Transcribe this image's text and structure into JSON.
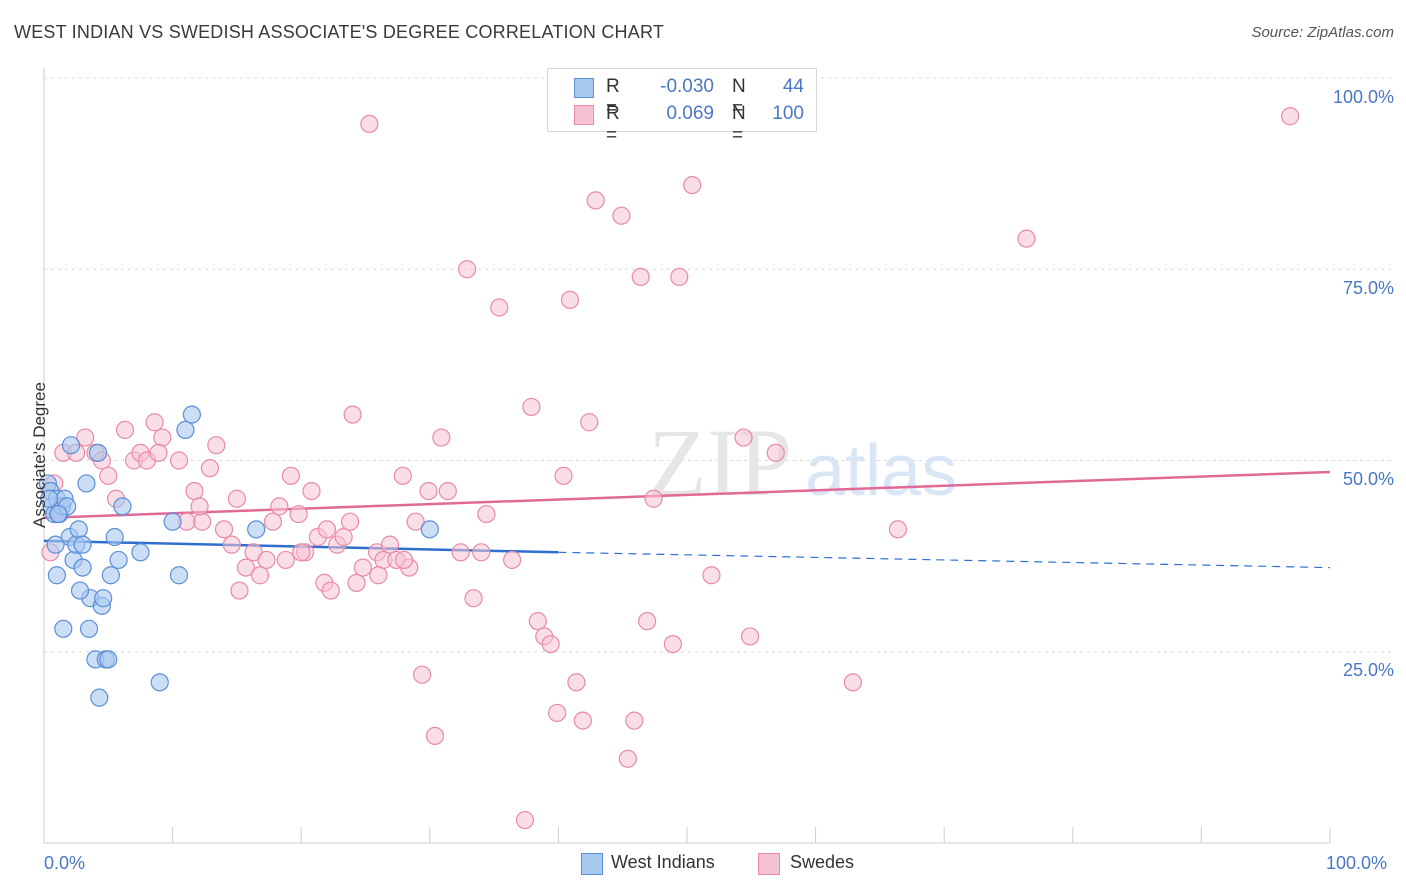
{
  "header": {
    "title": "WEST INDIAN VS SWEDISH ASSOCIATE'S DEGREE CORRELATION CHART",
    "source": "Source: ZipAtlas.com"
  },
  "colors": {
    "blue_fill": "#a9c8f0",
    "blue_stroke": "#5b8fd6",
    "blue_line": "#2e6fcf",
    "pink_fill": "#f6c3d3",
    "pink_stroke": "#e88aa8",
    "pink_line": "#e06a97",
    "axis_label": "#4a78c4",
    "grid": "#dcdcdc"
  },
  "legend": {
    "rows": [
      {
        "r_label": "R =",
        "r_value": "-0.030",
        "n_label": "N =",
        "n_value": "44"
      },
      {
        "r_label": "R =",
        "r_value": "0.069",
        "n_label": "N =",
        "n_value": "100"
      }
    ]
  },
  "bottom_legend": {
    "west_indians": "West Indians",
    "swedes": "Swedes"
  },
  "chart_data": {
    "type": "scatter",
    "title": "WEST INDIAN VS SWEDISH ASSOCIATE'S DEGREE CORRELATION CHART",
    "xlabel": "",
    "ylabel": "Associate's Degree",
    "xlim": [
      0,
      100
    ],
    "ylim": [
      0,
      100
    ],
    "x_tick_labels": [
      "0.0%",
      "100.0%"
    ],
    "y_tick_labels": [
      "100.0%",
      "75.0%",
      "50.0%",
      "25.0%"
    ],
    "y_ticks": [
      100,
      75,
      50,
      25
    ],
    "watermark": "ZIPatlas",
    "series": [
      {
        "name": "West Indians",
        "color": "blue",
        "r": -0.03,
        "n": 44,
        "trend": {
          "x0": 0,
          "y0": 39.5,
          "x1": 40,
          "y1": 38.0,
          "dash_to_x": 100,
          "dash_to_y": 36.0
        },
        "points": [
          [
            0.3,
            47
          ],
          [
            0.5,
            46
          ],
          [
            0.6,
            44
          ],
          [
            0.8,
            43
          ],
          [
            1.0,
            45
          ],
          [
            1.2,
            43
          ],
          [
            1.4,
            44
          ],
          [
            1.6,
            45
          ],
          [
            1.8,
            44
          ],
          [
            2.0,
            40
          ],
          [
            2.3,
            37
          ],
          [
            2.5,
            39
          ],
          [
            2.7,
            41
          ],
          [
            3.0,
            39
          ],
          [
            3.0,
            36
          ],
          [
            3.3,
            47
          ],
          [
            3.6,
            32
          ],
          [
            4.0,
            24
          ],
          [
            4.3,
            19
          ],
          [
            4.5,
            31
          ],
          [
            4.6,
            32
          ],
          [
            4.8,
            24
          ],
          [
            5.0,
            24
          ],
          [
            5.2,
            35
          ],
          [
            5.5,
            40
          ],
          [
            5.8,
            37
          ],
          [
            7.5,
            38
          ],
          [
            9.0,
            21
          ],
          [
            10.0,
            42
          ],
          [
            10.5,
            35
          ],
          [
            11.0,
            54
          ],
          [
            11.5,
            56
          ],
          [
            16.5,
            41
          ],
          [
            30.0,
            41
          ],
          [
            1.0,
            35
          ],
          [
            1.5,
            28
          ],
          [
            3.5,
            28
          ],
          [
            4.2,
            51
          ],
          [
            2.1,
            52
          ],
          [
            1.1,
            43
          ],
          [
            0.4,
            45
          ],
          [
            2.8,
            33
          ],
          [
            6.1,
            44
          ],
          [
            0.9,
            39
          ]
        ]
      },
      {
        "name": "Swedes",
        "color": "pink",
        "r": 0.069,
        "n": 100,
        "trend": {
          "x0": 0,
          "y0": 42.5,
          "x1": 100,
          "y1": 48.5
        },
        "points": [
          [
            0.5,
            38
          ],
          [
            0.8,
            47
          ],
          [
            1.5,
            51
          ],
          [
            2.5,
            51
          ],
          [
            3.2,
            53
          ],
          [
            4.0,
            51
          ],
          [
            4.5,
            50
          ],
          [
            5.0,
            48
          ],
          [
            5.6,
            45
          ],
          [
            6.3,
            54
          ],
          [
            7.0,
            50
          ],
          [
            7.5,
            51
          ],
          [
            8.0,
            50
          ],
          [
            8.6,
            55
          ],
          [
            9.2,
            53
          ],
          [
            10.5,
            50
          ],
          [
            11.1,
            42
          ],
          [
            11.7,
            46
          ],
          [
            12.3,
            42
          ],
          [
            12.9,
            49
          ],
          [
            13.4,
            52
          ],
          [
            14.0,
            41
          ],
          [
            14.6,
            39
          ],
          [
            15.2,
            33
          ],
          [
            15.7,
            36
          ],
          [
            16.3,
            38
          ],
          [
            16.8,
            35
          ],
          [
            17.3,
            37
          ],
          [
            17.8,
            42
          ],
          [
            18.3,
            44
          ],
          [
            18.8,
            37
          ],
          [
            19.2,
            48
          ],
          [
            19.8,
            43
          ],
          [
            20.3,
            38
          ],
          [
            20.8,
            46
          ],
          [
            21.3,
            40
          ],
          [
            21.8,
            34
          ],
          [
            22.3,
            33
          ],
          [
            22.8,
            39
          ],
          [
            23.3,
            40
          ],
          [
            23.8,
            42
          ],
          [
            24.3,
            34
          ],
          [
            24.8,
            36
          ],
          [
            25.3,
            94
          ],
          [
            25.9,
            38
          ],
          [
            26.4,
            37
          ],
          [
            26.9,
            39
          ],
          [
            27.4,
            37
          ],
          [
            27.9,
            48
          ],
          [
            28.4,
            36
          ],
          [
            28.9,
            42
          ],
          [
            29.4,
            22
          ],
          [
            29.9,
            46
          ],
          [
            30.4,
            14
          ],
          [
            30.9,
            53
          ],
          [
            31.4,
            46
          ],
          [
            32.4,
            38
          ],
          [
            32.9,
            75
          ],
          [
            33.4,
            32
          ],
          [
            34.4,
            43
          ],
          [
            35.4,
            70
          ],
          [
            36.4,
            37
          ],
          [
            37.4,
            3
          ],
          [
            37.9,
            57
          ],
          [
            38.4,
            29
          ],
          [
            38.9,
            27
          ],
          [
            39.4,
            26
          ],
          [
            39.9,
            17
          ],
          [
            40.4,
            48
          ],
          [
            40.9,
            71
          ],
          [
            41.4,
            21
          ],
          [
            41.9,
            16
          ],
          [
            42.4,
            55
          ],
          [
            42.9,
            84
          ],
          [
            44.9,
            82
          ],
          [
            45.4,
            11
          ],
          [
            45.9,
            16
          ],
          [
            46.4,
            74
          ],
          [
            46.9,
            29
          ],
          [
            47.4,
            45
          ],
          [
            48.9,
            26
          ],
          [
            49.4,
            74
          ],
          [
            50.4,
            86
          ],
          [
            51.9,
            35
          ],
          [
            54.4,
            53
          ],
          [
            54.9,
            27
          ],
          [
            56.9,
            51
          ],
          [
            62.9,
            21
          ],
          [
            66.4,
            41
          ],
          [
            76.4,
            79
          ],
          [
            96.9,
            95
          ],
          [
            12.1,
            44
          ],
          [
            15.0,
            45
          ],
          [
            24.0,
            56
          ],
          [
            26.0,
            35
          ],
          [
            20.0,
            38
          ],
          [
            28.0,
            37
          ],
          [
            34.0,
            38
          ],
          [
            22.0,
            41
          ],
          [
            8.9,
            51
          ]
        ]
      }
    ]
  }
}
